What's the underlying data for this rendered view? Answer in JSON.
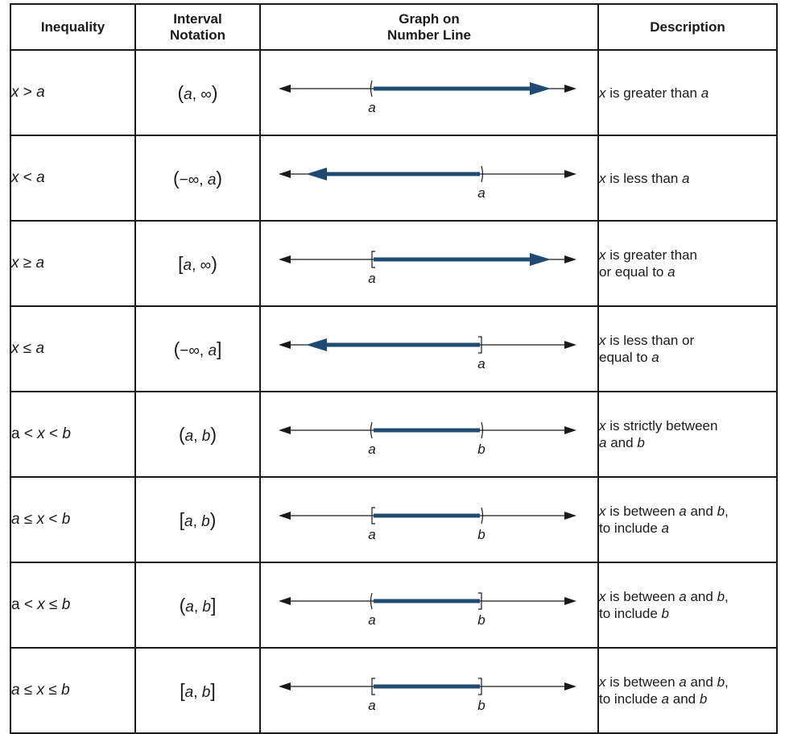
{
  "header": {
    "inequality": "Inequality",
    "interval_line1": "Interval",
    "interval_line2": "Notation",
    "graph_line1": "Graph on",
    "graph_line2": "Number Line",
    "description": "Description"
  },
  "colors": {
    "interval_fill": "#1f4a72",
    "axis": "#1a1a1a"
  },
  "rows": [
    {
      "inequality": {
        "lhs": "x",
        "op": ">",
        "rhs": "a"
      },
      "interval": {
        "open": "(",
        "left": "a",
        "right": "∞",
        "close": ")"
      },
      "graph": {
        "type": "ray-right",
        "left": "a",
        "left_end": "open"
      },
      "desc": [
        "x is greater than a"
      ]
    },
    {
      "inequality": {
        "lhs": "x",
        "op": "<",
        "rhs": "a"
      },
      "interval": {
        "open": "(",
        "left": "−∞",
        "right": "a",
        "close": ")"
      },
      "graph": {
        "type": "ray-left",
        "right": "a",
        "right_end": "open"
      },
      "desc": [
        "x is less than a"
      ]
    },
    {
      "inequality": {
        "lhs": "x",
        "op": "≥",
        "rhs": "a"
      },
      "interval": {
        "open": "[",
        "left": "a",
        "right": "∞",
        "close": ")"
      },
      "graph": {
        "type": "ray-right",
        "left": "a",
        "left_end": "closed"
      },
      "desc": [
        "x is greater than",
        "or equal to a"
      ]
    },
    {
      "inequality": {
        "lhs": "x",
        "op": "≤",
        "rhs": "a"
      },
      "interval": {
        "open": "(",
        "left": "−∞",
        "right": "a",
        "close": "]"
      },
      "graph": {
        "type": "ray-left",
        "right": "a",
        "right_end": "closed"
      },
      "desc": [
        "x is less than or",
        "equal to a"
      ]
    },
    {
      "inequality": {
        "text": "a < x < b"
      },
      "interval": {
        "open": "(",
        "left": "a",
        "right": "b",
        "close": ")"
      },
      "graph": {
        "type": "segment",
        "left": "a",
        "right": "b",
        "left_end": "open",
        "right_end": "open"
      },
      "desc": [
        "x is strictly between",
        "a and b"
      ]
    },
    {
      "inequality": {
        "text": "a ≤ x < b"
      },
      "interval": {
        "open": "[",
        "left": "a",
        "right": "b",
        "close": ")"
      },
      "graph": {
        "type": "segment",
        "left": "a",
        "right": "b",
        "left_end": "closed",
        "right_end": "open"
      },
      "desc": [
        "x is between a and b,",
        "to include a"
      ]
    },
    {
      "inequality": {
        "text": "a < x ≤ b"
      },
      "interval": {
        "open": "(",
        "left": "a",
        "right": "b",
        "close": "]"
      },
      "graph": {
        "type": "segment",
        "left": "a",
        "right": "b",
        "left_end": "open",
        "right_end": "closed"
      },
      "desc": [
        "x is between a and b,",
        "to include b"
      ]
    },
    {
      "inequality": {
        "text": "a ≤ x ≤ b"
      },
      "interval": {
        "open": "[",
        "left": "a",
        "right": "b",
        "close": "]"
      },
      "graph": {
        "type": "segment",
        "left": "a",
        "right": "b",
        "left_end": "closed",
        "right_end": "closed"
      },
      "desc": [
        "x is between a and b,",
        "to include a and b"
      ]
    }
  ]
}
